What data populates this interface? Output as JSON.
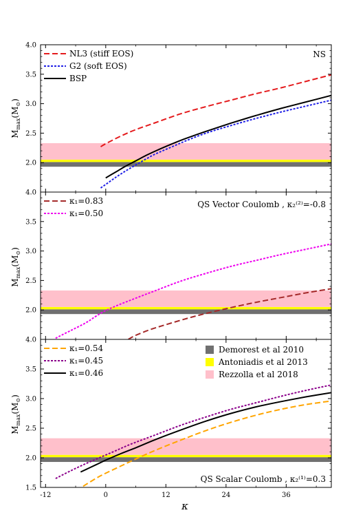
{
  "chart_data": [
    {
      "type": "line",
      "panel": "top",
      "annotation": "NS",
      "ylabel": "M_max(M_⊙)",
      "ylim": [
        1.5,
        4.0
      ],
      "xlim": [
        -13,
        45
      ],
      "series": [
        {
          "name": "NL3 (stiff EOS)",
          "color": "#e41a1c",
          "dash": "dash",
          "x": [
            -1,
            0,
            3,
            6,
            10,
            15,
            20,
            25,
            30,
            35,
            40,
            45
          ],
          "y": [
            2.27,
            2.32,
            2.45,
            2.56,
            2.68,
            2.83,
            2.95,
            3.06,
            3.17,
            3.27,
            3.38,
            3.49
          ]
        },
        {
          "name": "G2 (soft EOS)",
          "color": "#1f1fe6",
          "dash": "dot",
          "x": [
            -1,
            0,
            2,
            4,
            6,
            8,
            10,
            13,
            16,
            20,
            25,
            30,
            35,
            40,
            45
          ],
          "y": [
            1.57,
            1.63,
            1.75,
            1.86,
            1.96,
            2.06,
            2.15,
            2.26,
            2.37,
            2.5,
            2.63,
            2.75,
            2.86,
            2.96,
            3.06
          ]
        },
        {
          "name": "BSP",
          "color": "#000000",
          "dash": "solid",
          "x": [
            0,
            2,
            4,
            6,
            8,
            10,
            13,
            16,
            20,
            25,
            30,
            35,
            40,
            45
          ],
          "y": [
            1.74,
            1.84,
            1.94,
            2.03,
            2.12,
            2.2,
            2.31,
            2.41,
            2.53,
            2.67,
            2.8,
            2.92,
            3.03,
            3.14
          ]
        }
      ]
    },
    {
      "type": "line",
      "panel": "middle",
      "annotation": "QS Vector Coulomb , κ₂⁽²⁾=-0.8",
      "ylabel": "M_max(M_⊙)",
      "ylim": [
        1.5,
        4.0
      ],
      "xlim": [
        -13,
        45
      ],
      "series": [
        {
          "name": "κ₁=0.83",
          "color": "#a52a2a",
          "dash": "dash",
          "x": [
            4.5,
            6,
            9,
            12,
            16,
            20,
            25,
            30,
            35,
            40,
            45
          ],
          "y": [
            1.5,
            1.57,
            1.67,
            1.75,
            1.85,
            1.94,
            2.04,
            2.13,
            2.21,
            2.29,
            2.36
          ]
        },
        {
          "name": "κ₁=0.50",
          "color": "#ee00ee",
          "dash": "dot",
          "x": [
            -10,
            -7,
            -4,
            -2,
            0,
            3,
            6,
            10,
            15,
            20,
            25,
            30,
            35,
            40,
            45
          ],
          "y": [
            1.52,
            1.65,
            1.78,
            1.89,
            1.99,
            2.1,
            2.2,
            2.33,
            2.49,
            2.62,
            2.74,
            2.84,
            2.94,
            3.03,
            3.12
          ]
        }
      ]
    },
    {
      "type": "line",
      "panel": "bottom",
      "annotation": "QS Scalar Coulomb , κ₂⁽¹⁾=0.3",
      "ylabel": "M_max(M_⊙)",
      "xlabel": "κ",
      "ylim": [
        1.5,
        4.0
      ],
      "xlim": [
        -13,
        45
      ],
      "series": [
        {
          "name": "κ₁=0.54",
          "color": "#ffa500",
          "dash": "dash",
          "x": [
            -4.5,
            -2,
            0,
            3,
            6,
            10,
            15,
            20,
            25,
            30,
            35,
            40,
            45
          ],
          "y": [
            1.52,
            1.65,
            1.74,
            1.86,
            1.98,
            2.13,
            2.3,
            2.46,
            2.6,
            2.72,
            2.82,
            2.9,
            2.96
          ]
        },
        {
          "name": "κ₁=0.45",
          "color": "#8b008b",
          "dash": "dot",
          "x": [
            -10,
            -7,
            -4,
            -1,
            2,
            5,
            10,
            15,
            20,
            25,
            30,
            35,
            40,
            45
          ],
          "y": [
            1.65,
            1.78,
            1.9,
            2.01,
            2.12,
            2.23,
            2.39,
            2.55,
            2.69,
            2.82,
            2.93,
            3.04,
            3.14,
            3.23
          ]
        },
        {
          "name": "κ₁=0.46",
          "color": "#000000",
          "dash": "solid",
          "x": [
            -5,
            -2,
            0,
            3,
            6,
            10,
            15,
            20,
            25,
            30,
            35,
            40,
            45
          ],
          "y": [
            1.76,
            1.88,
            1.96,
            2.07,
            2.17,
            2.31,
            2.47,
            2.62,
            2.75,
            2.86,
            2.95,
            3.03,
            3.1
          ]
        }
      ]
    }
  ],
  "bands": [
    {
      "label": "Demorest et al 2010",
      "color": "#707070",
      "ymin": 1.93,
      "ymax": 2.01
    },
    {
      "label": "Antoniadis et al 2013",
      "color": "#ffff00",
      "ymin": 2.01,
      "ymax": 2.05
    },
    {
      "label": "Rezzolla et al 2018",
      "color": "#ffc0cb",
      "ymin": 2.05,
      "ymax": 2.33
    }
  ],
  "axes": {
    "xticks": [
      -12,
      0,
      12,
      24,
      36
    ],
    "xtick_labels": [
      "-12",
      "0",
      "12",
      "24",
      "36"
    ],
    "yticks_top": [
      "4.0",
      "3.5",
      "3.0",
      "2.5",
      "2.0"
    ],
    "yticks_bottom": [
      "4.0",
      "3.5",
      "3.0",
      "2.5",
      "2.0",
      "1.5"
    ],
    "ylabel_main": "M",
    "ylabel_sub": "max",
    "ylabel_unit": "(M",
    "ylabel_sun": "⊙",
    "ylabel_close": ")",
    "xlabel": "κ"
  },
  "legend_text": {
    "top": [
      "NL3 (stiff EOS)",
      "G2 (soft EOS)",
      "BSP"
    ],
    "middle": [
      "κ₁=0.83",
      "κ₁=0.50"
    ],
    "bottom": [
      "κ₁=0.54",
      "κ₁=0.45",
      "κ₁=0.46"
    ],
    "bands": [
      "Demorest et al 2010",
      "Antoniadis et al 2013",
      "Rezzolla et al 2018"
    ]
  },
  "annotations": {
    "top": "NS",
    "middle": "QS Vector Coulomb , κ₂⁽²⁾=-0.8",
    "bottom": "QS Scalar Coulomb , κ₂⁽¹⁾=0.3"
  }
}
